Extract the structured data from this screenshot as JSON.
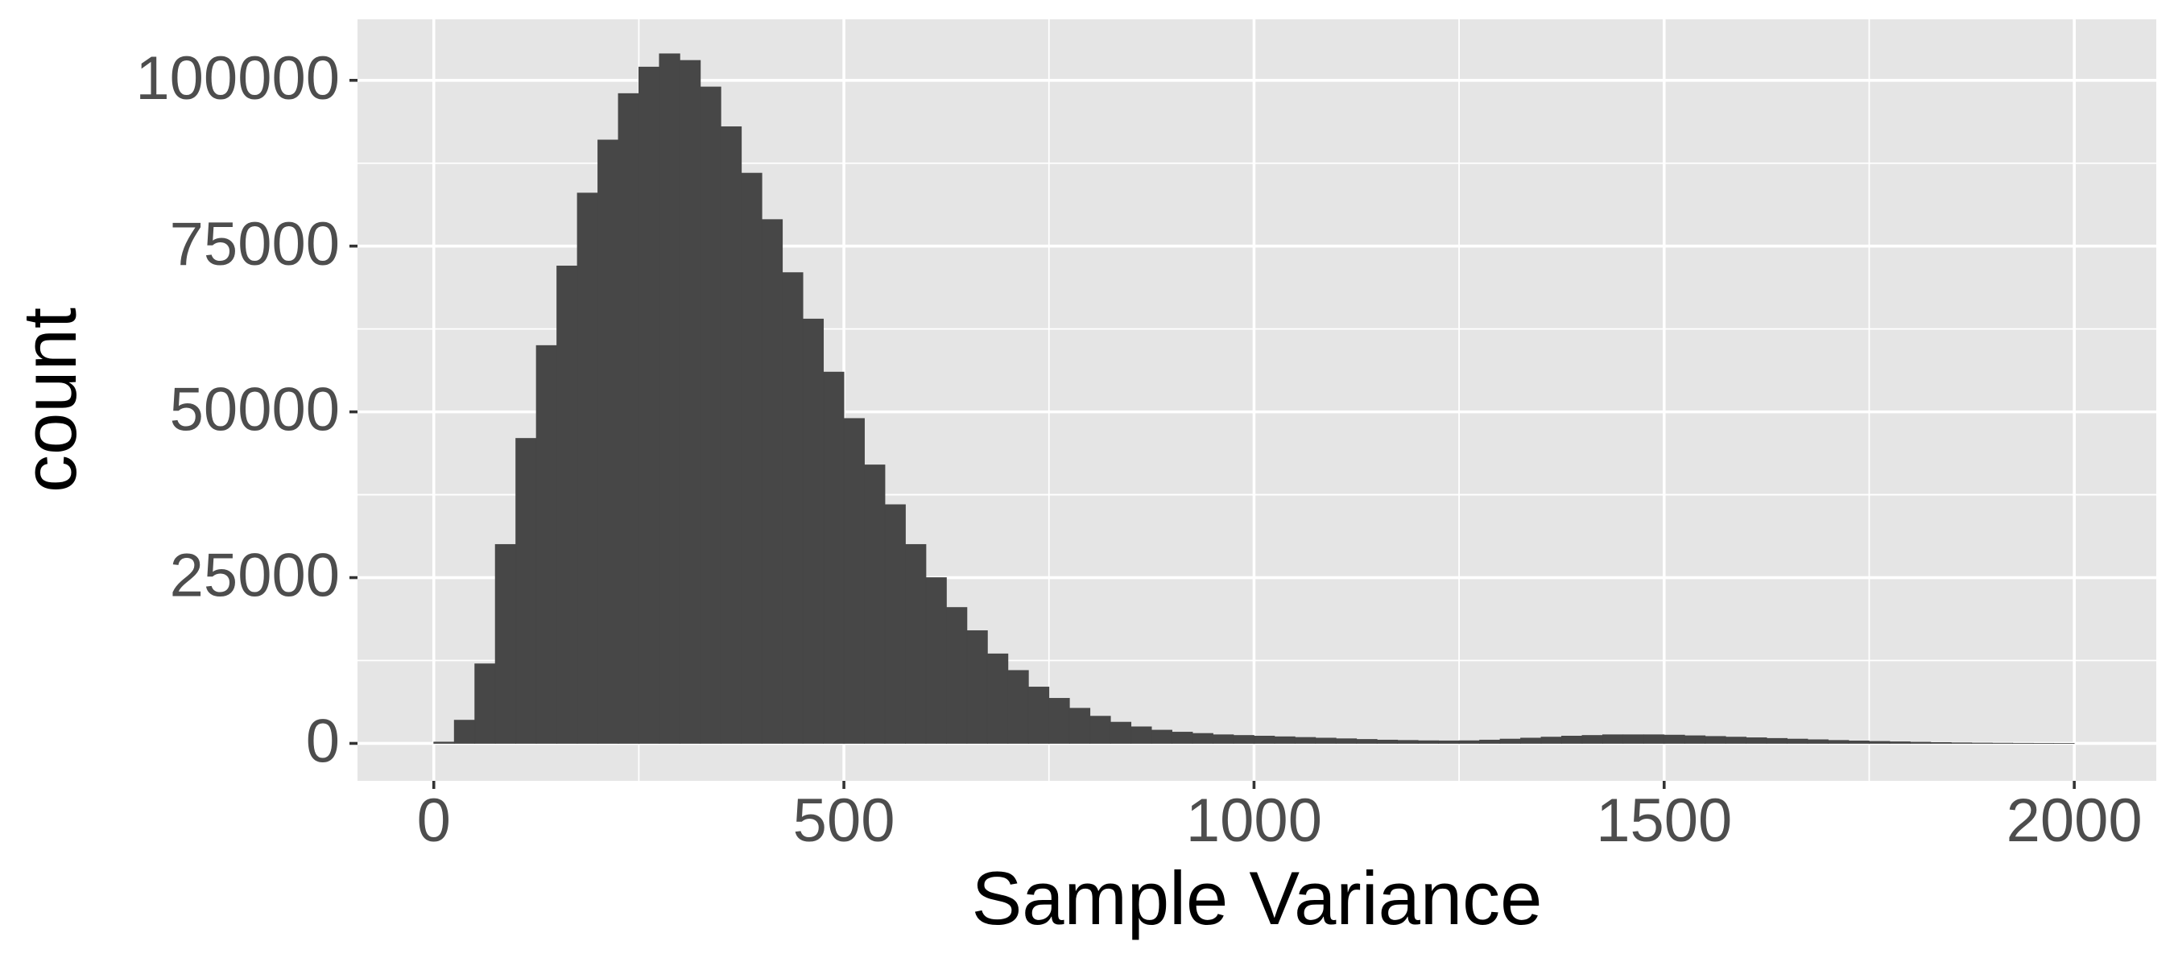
{
  "chart_data": {
    "type": "histogram",
    "xlabel": "Sample Variance",
    "ylabel": "count",
    "bins": [
      0,
      25,
      50,
      75,
      100,
      125,
      150,
      175,
      200,
      225,
      250,
      275,
      300,
      325,
      350,
      375,
      400,
      425,
      450,
      475,
      500,
      525,
      550,
      575,
      600,
      625,
      650,
      675,
      700,
      725,
      750,
      775,
      800,
      825,
      850,
      875,
      900,
      925,
      950,
      975,
      1000,
      1025,
      1050,
      1075,
      1100,
      1125,
      1150,
      1175,
      1200,
      1225,
      1250,
      1275,
      1300,
      1325,
      1350,
      1375,
      1400,
      1425,
      1450,
      1475,
      1500,
      1525,
      1550,
      1575,
      1600,
      1625,
      1650,
      1675,
      1700,
      1725,
      1750,
      1775,
      1800,
      1825,
      1850,
      1875,
      1900,
      1925,
      1950,
      1975,
      2000
    ],
    "values": [
      200,
      3500,
      12000,
      30000,
      46000,
      60000,
      72000,
      83000,
      91000,
      98000,
      102000,
      104000,
      103000,
      99000,
      93000,
      86000,
      79000,
      71000,
      64000,
      56000,
      49000,
      42000,
      36000,
      30000,
      25000,
      20500,
      17000,
      13500,
      11000,
      8500,
      6800,
      5300,
      4100,
      3200,
      2500,
      2000,
      1700,
      1500,
      1300,
      1200,
      1100,
      1000,
      900,
      800,
      700,
      600,
      500,
      450,
      400,
      380,
      400,
      500,
      650,
      800,
      950,
      1100,
      1200,
      1300,
      1300,
      1300,
      1250,
      1150,
      1050,
      950,
      850,
      750,
      650,
      550,
      450,
      370,
      300,
      240,
      180,
      130,
      90,
      60,
      40,
      20,
      10,
      5
    ],
    "color": "#474747",
    "xlim": [
      -93,
      2100
    ],
    "ylim": [
      -5650,
      109200
    ],
    "xticks": [
      0,
      500,
      1000,
      1500,
      2000
    ],
    "yticks": [
      0,
      25000,
      50000,
      75000,
      100000
    ],
    "grid": true,
    "panel_color": "#e5e5e5"
  }
}
